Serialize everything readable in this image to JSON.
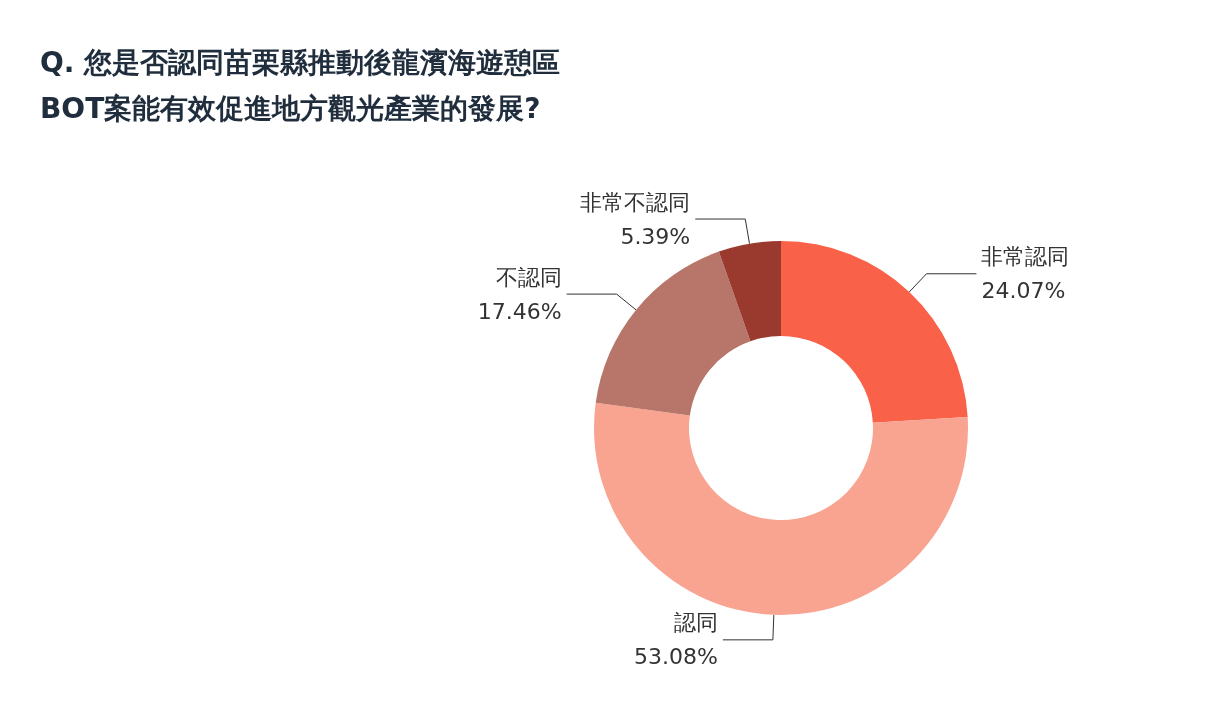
{
  "chart_data": {
    "type": "donut",
    "title": "Q. 您是否認同苗栗縣推動後龍濱海遊憩區BOT案能有效促進地方觀光產業的發展?",
    "categories": [
      "非常認同",
      "認同",
      "不認同",
      "非常不認同"
    ],
    "values": [
      24.07,
      53.08,
      17.46,
      5.39
    ],
    "colors": [
      "#f96148",
      "#f9a391",
      "#b8756a",
      "#9a3a2e"
    ],
    "value_labels": [
      "24.07%",
      "53.08%",
      "17.46%",
      "5.39%"
    ],
    "legend": false
  }
}
